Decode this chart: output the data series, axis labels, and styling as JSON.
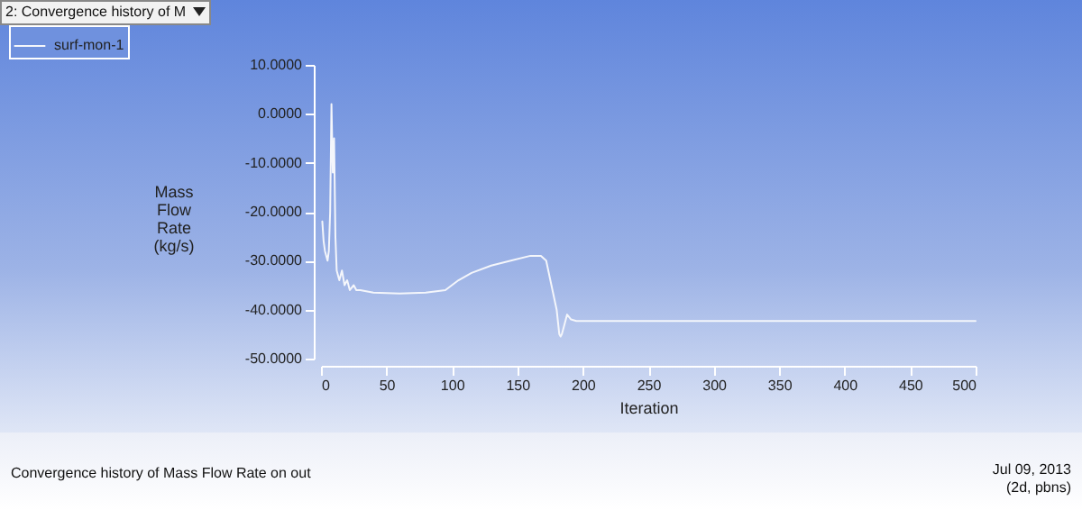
{
  "chart_data": {
    "type": "line",
    "xlabel": "Iteration",
    "ylabel": "Mass Flow Rate (kg/s)",
    "annotations": [
      "2: Convergence history of M",
      "Convergence history of Mass Flow Rate on out",
      "Jul 09, 2013",
      "(2d, pbns)"
    ],
    "xlim": [
      0,
      500
    ],
    "xticks": [
      0,
      50,
      100,
      150,
      200,
      250,
      300,
      350,
      400,
      450,
      500
    ],
    "ylim": [
      -50,
      10
    ],
    "yticks": [
      {
        "value": -50,
        "label": "-50.0000"
      },
      {
        "value": -40,
        "label": "-40.0000"
      },
      {
        "value": -30,
        "label": "-30.0000"
      },
      {
        "value": -20,
        "label": "-20.0000"
      },
      {
        "value": -10,
        "label": "-10.0000"
      },
      {
        "value": 0,
        "label": "0.0000"
      },
      {
        "value": 10,
        "label": "10.0000"
      }
    ],
    "grid": false,
    "legend": "top left",
    "marker": "none",
    "line_style": "solid",
    "x": [
      1,
      2,
      3,
      5,
      6,
      7,
      8,
      9,
      10,
      11,
      12,
      14,
      16,
      18,
      20,
      22,
      25,
      27,
      30,
      40,
      60,
      80,
      95,
      105,
      115,
      130,
      145,
      160,
      168,
      172,
      176,
      180,
      182,
      183,
      184,
      186,
      188,
      191,
      195,
      500
    ],
    "series": [
      {
        "name": "surf-mon-1",
        "color": "#f4f6fb",
        "values": [
          -22,
          -26,
          -28,
          -30,
          -28,
          -20,
          2,
          -12,
          -5,
          -25,
          -32,
          -34,
          -32,
          -35,
          -34,
          -36,
          -35,
          -36,
          -36,
          -36.5,
          -36.7,
          -36.5,
          -36,
          -34,
          -32.5,
          -31,
          -30,
          -29,
          -29,
          -30,
          -35,
          -40,
          -45,
          -45.5,
          -45,
          -43,
          -41,
          -42,
          -42.3,
          -42.3
        ]
      }
    ]
  }
}
